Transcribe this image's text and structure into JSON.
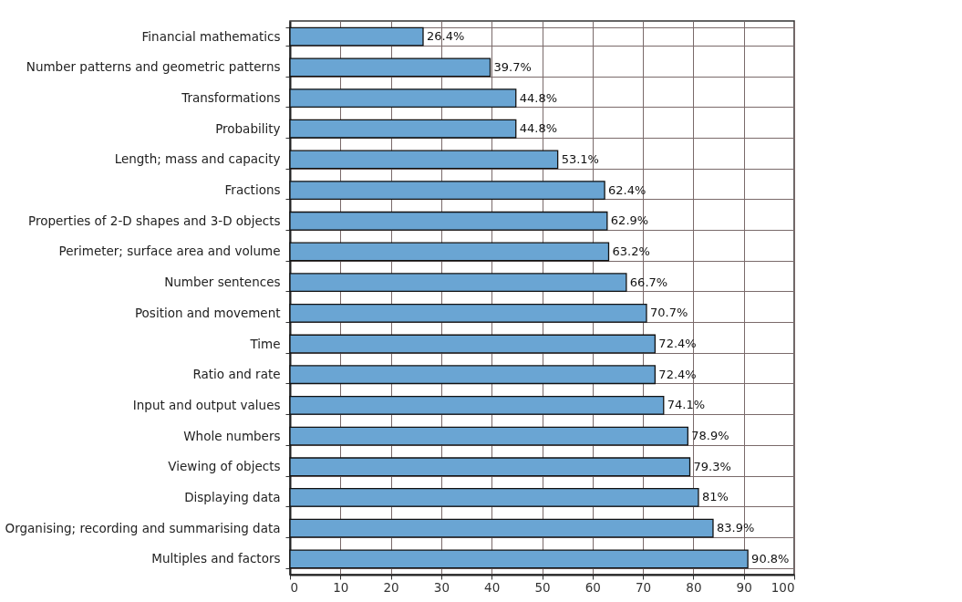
{
  "chart_data": {
    "type": "bar",
    "orientation": "horizontal",
    "categories": [
      "Financial mathematics",
      "Number patterns and geometric patterns",
      "Transformations",
      "Probability",
      "Length; mass and capacity",
      "Fractions",
      "Properties of 2-D shapes and 3-D objects",
      "Perimeter; surface area and volume",
      "Number sentences",
      "Position and movement",
      "Time",
      "Ratio and rate",
      "Input and output values",
      "Whole numbers",
      "Viewing of objects",
      "Displaying data",
      "Organising; recording and summarising data",
      "Multiples and factors"
    ],
    "values": [
      26.4,
      39.7,
      44.8,
      44.8,
      53.1,
      62.4,
      62.9,
      63.2,
      66.7,
      70.7,
      72.4,
      72.4,
      74.1,
      78.9,
      79.3,
      81,
      83.9,
      90.8
    ],
    "value_labels": [
      "26.4%",
      "39.7%",
      "44.8%",
      "44.8%",
      "53.1%",
      "62.4%",
      "62.9%",
      "63.2%",
      "66.7%",
      "70.7%",
      "72.4%",
      "72.4%",
      "74.1%",
      "78.9%",
      "79.3%",
      "81%",
      "83.9%",
      "90.8%"
    ],
    "color": "#6aa5d3",
    "xlim": [
      0,
      100
    ],
    "xticks": [
      0,
      10,
      20,
      30,
      40,
      50,
      60,
      70,
      80,
      90,
      100
    ],
    "grid": true
  }
}
